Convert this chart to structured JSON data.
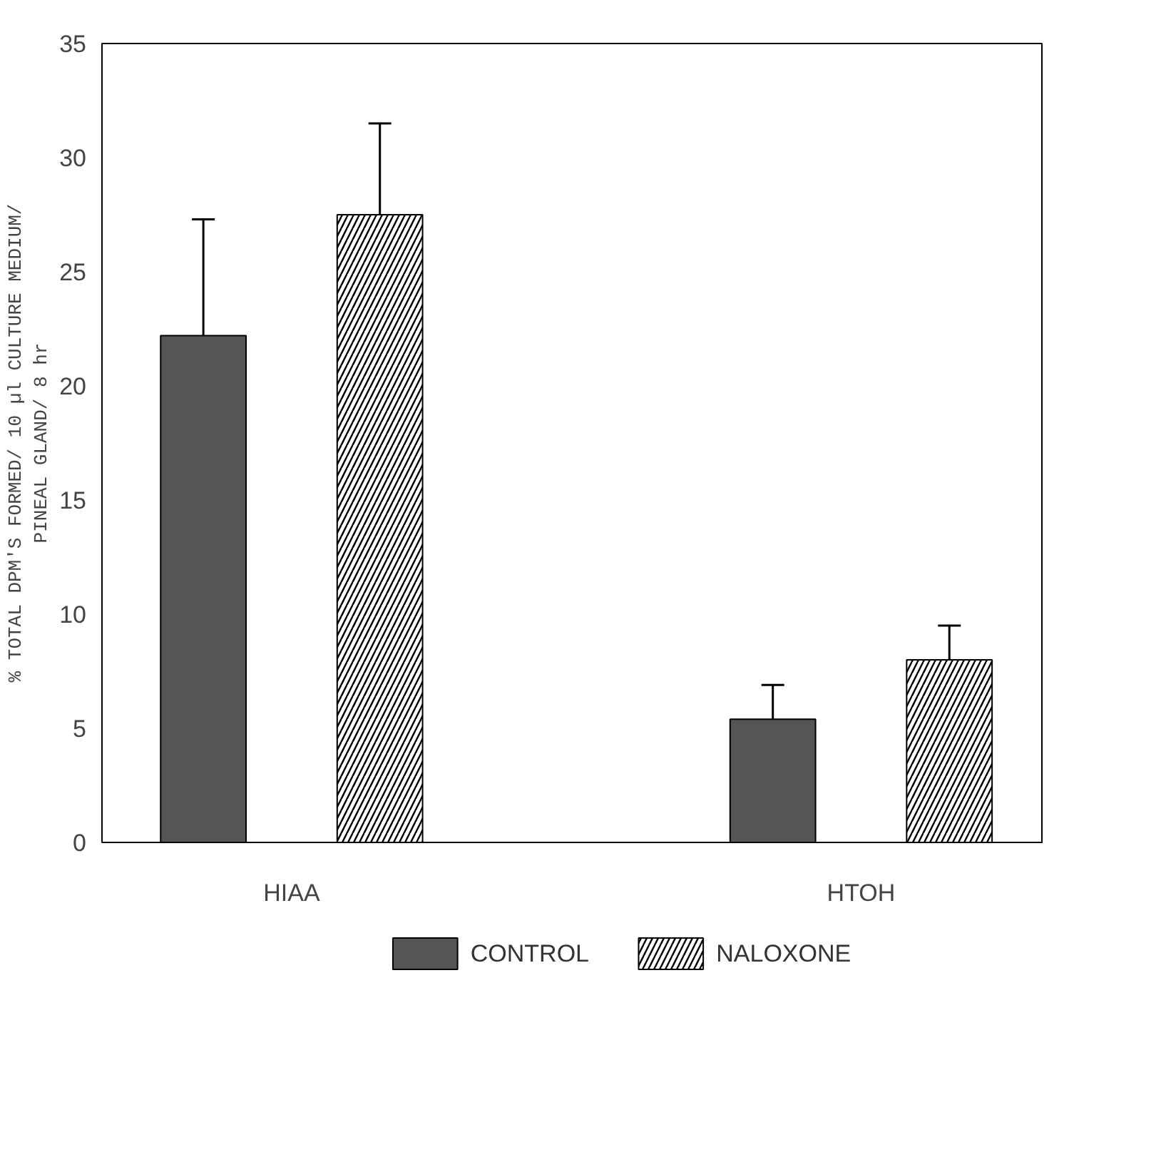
{
  "chart_data": {
    "type": "bar",
    "ylabel": "% TOTAL DPM'S FORMED/ 10 µl CULTURE MEDIUM/\nPINEAL GLAND/ 8 hr",
    "categories": [
      "HIAA",
      "HTOH"
    ],
    "series": [
      {
        "name": "CONTROL",
        "color": "#555555",
        "values": [
          22.2,
          5.4
        ],
        "errors": [
          [
            22.2,
            27.3
          ],
          [
            5.4,
            6.9
          ]
        ]
      },
      {
        "name": "NALOXONE",
        "color": "#ffffff",
        "values": [
          27.5,
          8.0
        ],
        "errors": [
          [
            27.5,
            31.5
          ],
          [
            8.0,
            9.5
          ]
        ]
      }
    ],
    "ylim": [
      0,
      35
    ],
    "yticks": [
      0,
      5,
      10,
      15,
      20,
      25,
      30,
      35
    ],
    "grid": false,
    "legend": "bottom"
  }
}
